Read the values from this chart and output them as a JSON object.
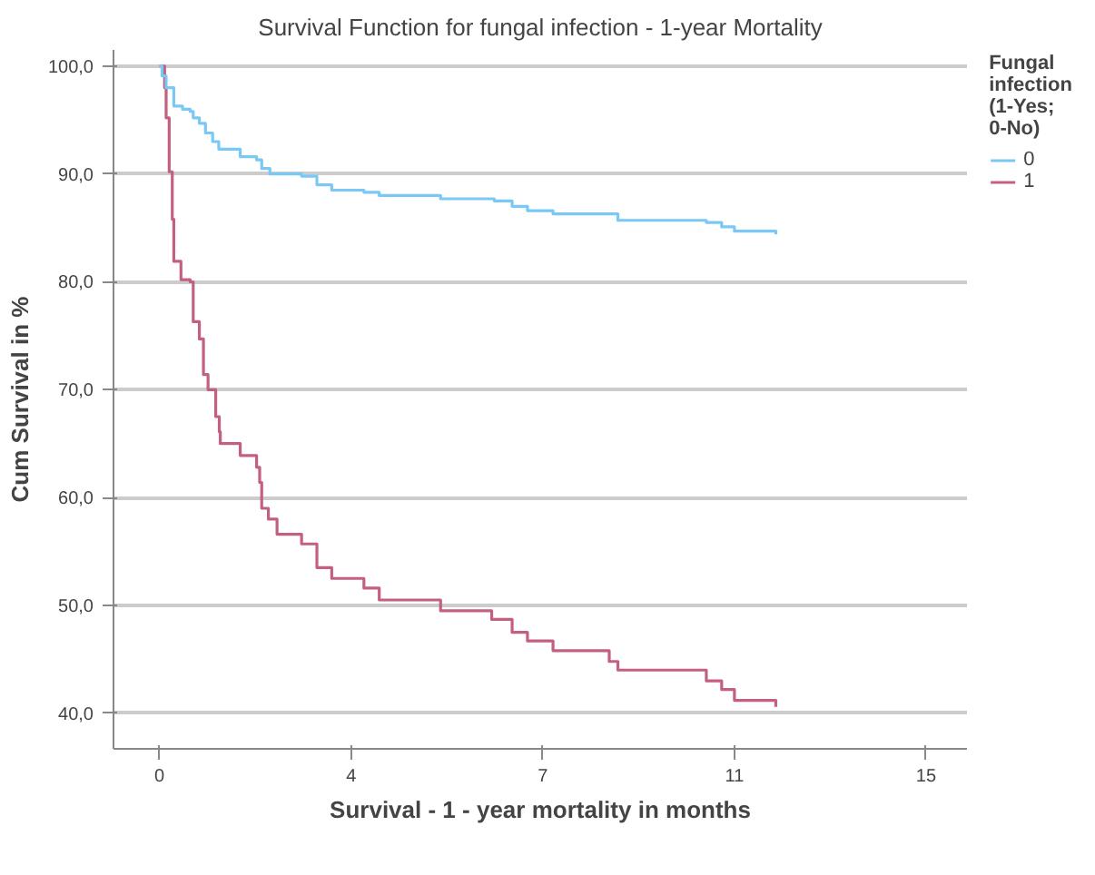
{
  "chart_data": {
    "type": "step",
    "title": "Survival Function for fungal infection - 1-year Mortality",
    "xlabel": "Survival - 1 - year mortality in months",
    "ylabel": "Cum Survival in %",
    "legend_title": "Fungal infection (1-Yes; 0-No)",
    "xlim": [
      -0.9,
      15.8
    ],
    "xticks": [
      0,
      {
        "value": 3.75,
        "label": "4"
      },
      {
        "value": 7.5,
        "label": "7"
      },
      {
        "value": 11.25,
        "label": "11"
      },
      15
    ],
    "ylim": [
      36.7,
      101.5
    ],
    "yticks": [
      {
        "value": 40,
        "label": "40,0"
      },
      {
        "value": 50,
        "label": "50,0"
      },
      {
        "value": 60,
        "label": "60,0"
      },
      {
        "value": 70,
        "label": "70,0"
      },
      {
        "value": 80,
        "label": "80,0"
      },
      {
        "value": 90,
        "label": "90,0"
      },
      {
        "value": 100,
        "label": "100,0"
      }
    ],
    "grid": "y",
    "legend": "right",
    "marker": "none",
    "line_style": "solid",
    "series": [
      {
        "name": "0",
        "color": "#7ac8f5",
        "x": [
          0,
          0.05,
          0.13,
          0.28,
          0.45,
          0.6,
          0.66,
          0.78,
          0.9,
          1.04,
          1.16,
          1.58,
          1.9,
          2.0,
          2.16,
          2.78,
          3.08,
          3.37,
          4.0,
          4.3,
          5.5,
          6.55,
          6.9,
          7.2,
          7.7,
          8.97,
          10.7,
          11.0,
          11.25,
          12.06
        ],
        "values": [
          100,
          99.1,
          98,
          96.3,
          96,
          95.8,
          95.2,
          94.7,
          93.8,
          93,
          92.3,
          91.6,
          91.3,
          90.5,
          90,
          89.8,
          89,
          88.5,
          88.3,
          88,
          87.7,
          87.5,
          87,
          86.6,
          86.3,
          85.7,
          85.5,
          85.1,
          84.7,
          84.4
        ]
      },
      {
        "name": "1",
        "color": "#c4607f",
        "x": [
          0,
          0.1,
          0.13,
          0.19,
          0.25,
          0.28,
          0.42,
          0.6,
          0.66,
          0.78,
          0.86,
          0.95,
          1.1,
          1.17,
          1.19,
          1.58,
          1.9,
          1.96,
          2.0,
          2.13,
          2.3,
          2.78,
          3.08,
          3.37,
          4.0,
          4.3,
          5.5,
          6.5,
          6.9,
          7.2,
          7.7,
          8.8,
          8.97,
          10.7,
          11.0,
          11.25,
          12.06
        ],
        "values": [
          100,
          98,
          95.2,
          90.2,
          85.8,
          81.9,
          80.2,
          80,
          76.3,
          74.7,
          71.4,
          70,
          67.5,
          66.1,
          65,
          63.9,
          62.8,
          61.4,
          59,
          58,
          56.6,
          55.7,
          53.5,
          52.5,
          51.6,
          50.5,
          49.5,
          48.7,
          47.5,
          46.7,
          45.8,
          44.8,
          44,
          43,
          42.2,
          41.2,
          40.6
        ]
      }
    ]
  }
}
